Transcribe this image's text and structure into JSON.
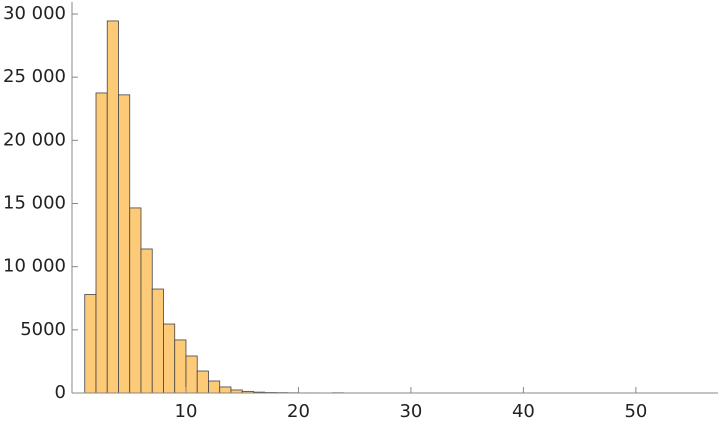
{
  "chart_data": {
    "type": "histogram",
    "bins": [
      1,
      2,
      3,
      4,
      5,
      6,
      7,
      8,
      9,
      10,
      11,
      12,
      13,
      14,
      15,
      16,
      17,
      18,
      19,
      20,
      21,
      22,
      23,
      24
    ],
    "values": [
      7800,
      23750,
      29450,
      23600,
      14650,
      11400,
      8230,
      5460,
      4200,
      2930,
      1740,
      950,
      480,
      240,
      130,
      70,
      40,
      30,
      20,
      10,
      10,
      0,
      20
    ],
    "color": "#fdca78",
    "xlim": [
      0,
      57.3
    ],
    "xticks": [
      10,
      20,
      30,
      40,
      50
    ],
    "ylim": [
      0,
      30000
    ],
    "yticks": [
      0,
      5000,
      {
        "value": 10000,
        "label": "10 000"
      },
      {
        "value": 15000,
        "label": "15 000"
      },
      {
        "value": 20000,
        "label": "20 000"
      },
      {
        "value": 25000,
        "label": "25 000"
      },
      {
        "value": 30000,
        "label": "30 000"
      }
    ]
  }
}
